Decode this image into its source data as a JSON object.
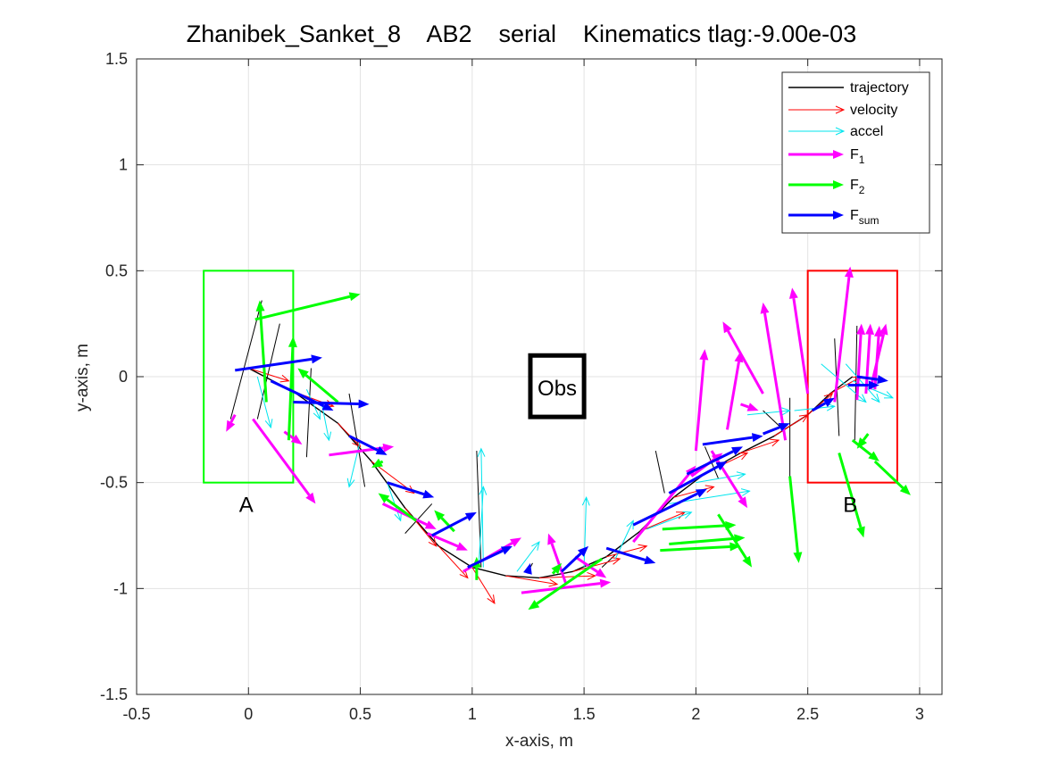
{
  "chart_data": {
    "type": "line",
    "title": "Zhanibek_Sanket_8    AB2    serial    Kinematics tlag:-9.00e-03",
    "xlabel": "x-axis, m",
    "ylabel": "y-axis, m",
    "xlim": [
      -0.5,
      3.1
    ],
    "ylim": [
      -1.5,
      1.5
    ],
    "xticks": [
      -0.5,
      0,
      0.5,
      1,
      1.5,
      2,
      2.5,
      3
    ],
    "yticks": [
      -1.5,
      -1,
      -0.5,
      0,
      0.5,
      1,
      1.5
    ],
    "xtick_labels": [
      "-0.5",
      "0",
      "0.5",
      "1",
      "1.5",
      "2",
      "2.5",
      "3"
    ],
    "ytick_labels": [
      "-1.5",
      "-1",
      "-0.5",
      "0",
      "0.5",
      "1",
      "1.5"
    ],
    "grid": true,
    "legend": {
      "placement": "top-right",
      "entries": [
        {
          "label": "trajectory",
          "color": "#000000",
          "style": "line"
        },
        {
          "label": "velocity",
          "color": "#ff0000",
          "style": "thin-arrow"
        },
        {
          "label": "accel",
          "color": "#00e5ee",
          "style": "thin-arrow"
        },
        {
          "label": "F",
          "sub": "1",
          "color": "#ff00ff",
          "style": "thick-arrow"
        },
        {
          "label": "F",
          "sub": "2",
          "color": "#00ff00",
          "style": "thick-arrow"
        },
        {
          "label": "F",
          "sub": "sum",
          "color": "#0000ff",
          "style": "thick-arrow"
        }
      ]
    },
    "regions": [
      {
        "label": "A",
        "x": [
          -0.2,
          0.2
        ],
        "y": [
          -0.5,
          0.5
        ],
        "color": "#00ff00",
        "label_pos": [
          -0.01,
          -0.6
        ]
      },
      {
        "label": "B",
        "x": [
          2.5,
          2.9
        ],
        "y": [
          -0.5,
          0.5
        ],
        "color": "#ff0000",
        "label_pos": [
          2.69,
          -0.6
        ]
      },
      {
        "label": "Obs",
        "x": [
          1.26,
          1.5
        ],
        "y": [
          -0.19,
          0.1
        ],
        "color": "#000000",
        "label_pos": [
          1.38,
          -0.05
        ]
      }
    ],
    "trajectory": {
      "x": [
        0.0,
        0.2,
        0.4,
        0.55,
        0.7,
        0.85,
        1.0,
        1.15,
        1.3,
        1.45,
        1.6,
        1.75,
        1.9,
        2.05,
        2.2,
        2.35,
        2.5,
        2.6,
        2.7
      ],
      "y": [
        0.04,
        -0.07,
        -0.22,
        -0.4,
        -0.62,
        -0.8,
        -0.9,
        -0.94,
        -0.95,
        -0.92,
        -0.85,
        -0.73,
        -0.57,
        -0.45,
        -0.36,
        -0.28,
        -0.18,
        -0.08,
        0.0
      ]
    },
    "connectors": [
      [
        [
          0.06,
          0.36
        ],
        [
          -0.08,
          -0.2
        ]
      ],
      [
        [
          0.14,
          0.25
        ],
        [
          0.04,
          -0.2
        ]
      ],
      [
        [
          0.28,
          0.04
        ],
        [
          0.26,
          -0.38
        ]
      ],
      [
        [
          0.45,
          -0.08
        ],
        [
          0.52,
          -0.52
        ]
      ],
      [
        [
          0.7,
          -0.74
        ],
        [
          0.82,
          -0.6
        ]
      ],
      [
        [
          1.04,
          -0.9
        ],
        [
          1.02,
          -0.35
        ]
      ],
      [
        [
          1.25,
          -0.92
        ],
        [
          1.27,
          -0.88
        ]
      ],
      [
        [
          1.58,
          -0.9
        ],
        [
          1.64,
          -0.84
        ]
      ],
      [
        [
          1.86,
          -0.55
        ],
        [
          1.82,
          -0.35
        ]
      ],
      [
        [
          2.04,
          -0.33
        ],
        [
          2.1,
          -0.48
        ]
      ],
      [
        [
          2.3,
          -0.16
        ],
        [
          2.38,
          -0.24
        ]
      ],
      [
        [
          2.42,
          -0.1
        ],
        [
          2.42,
          -0.48
        ]
      ],
      [
        [
          2.62,
          0.18
        ],
        [
          2.64,
          -0.28
        ]
      ],
      [
        [
          2.72,
          0.24
        ],
        [
          2.71,
          -0.3
        ]
      ]
    ],
    "series": [
      {
        "name": "velocity",
        "color": "#ff0000",
        "arrows": [
          [
            0.0,
            0.04,
            0.18,
            -0.02
          ],
          [
            0.2,
            -0.07,
            0.38,
            -0.14
          ],
          [
            0.4,
            -0.22,
            0.5,
            -0.33
          ],
          [
            0.55,
            -0.4,
            0.74,
            -0.55
          ],
          [
            0.7,
            -0.62,
            0.84,
            -0.8
          ],
          [
            0.85,
            -0.8,
            0.98,
            -0.95
          ],
          [
            1.0,
            -0.9,
            1.1,
            -1.07
          ],
          [
            1.15,
            -0.94,
            1.38,
            -0.98
          ],
          [
            1.3,
            -0.95,
            1.55,
            -0.94
          ],
          [
            1.45,
            -0.92,
            1.66,
            -0.86
          ],
          [
            1.6,
            -0.85,
            1.78,
            -0.8
          ],
          [
            1.75,
            -0.73,
            1.95,
            -0.64
          ],
          [
            1.9,
            -0.57,
            2.08,
            -0.52
          ],
          [
            2.05,
            -0.45,
            2.23,
            -0.36
          ],
          [
            2.2,
            -0.36,
            2.37,
            -0.3
          ],
          [
            2.35,
            -0.28,
            2.5,
            -0.18
          ],
          [
            2.5,
            -0.18,
            2.61,
            -0.08
          ],
          [
            2.6,
            -0.08,
            2.74,
            0.0
          ]
        ]
      },
      {
        "name": "accel",
        "color": "#00e5ee",
        "arrows": [
          [
            0.04,
            0.0,
            0.1,
            -0.24
          ],
          [
            0.26,
            -0.06,
            0.32,
            -0.2
          ],
          [
            0.33,
            -0.14,
            0.36,
            -0.3
          ],
          [
            0.5,
            -0.3,
            0.45,
            -0.52
          ],
          [
            0.62,
            -0.5,
            0.68,
            -0.68
          ],
          [
            1.03,
            -0.88,
            1.05,
            -0.52
          ],
          [
            1.05,
            -0.9,
            1.04,
            -0.34
          ],
          [
            1.2,
            -0.92,
            1.3,
            -0.78
          ],
          [
            1.5,
            -0.9,
            1.51,
            -0.57
          ],
          [
            1.64,
            -0.86,
            1.72,
            -0.68
          ],
          [
            1.78,
            -0.72,
            1.98,
            -0.64
          ],
          [
            1.88,
            -0.6,
            2.24,
            -0.54
          ],
          [
            2.0,
            -0.5,
            2.22,
            -0.46
          ],
          [
            2.23,
            -0.18,
            2.42,
            -0.16
          ],
          [
            2.44,
            -0.16,
            2.62,
            -0.14
          ],
          [
            2.56,
            0.06,
            2.76,
            -0.12
          ],
          [
            2.67,
            0.06,
            2.82,
            -0.12
          ],
          [
            2.7,
            -0.02,
            2.88,
            -0.1
          ]
        ]
      },
      {
        "name": "F1",
        "color": "#ff00ff",
        "arrows": [
          [
            0.02,
            -0.2,
            0.3,
            -0.6
          ],
          [
            0.16,
            -0.26,
            0.24,
            -0.32
          ],
          [
            -0.06,
            -0.18,
            -0.1,
            -0.26
          ],
          [
            0.36,
            -0.37,
            0.65,
            -0.33
          ],
          [
            0.6,
            -0.6,
            0.84,
            -0.72
          ],
          [
            0.8,
            -0.74,
            0.98,
            -0.82
          ],
          [
            0.96,
            -0.92,
            1.22,
            -0.76
          ],
          [
            1.22,
            -1.02,
            1.62,
            -0.97
          ],
          [
            1.42,
            -0.98,
            1.34,
            -0.74
          ],
          [
            1.46,
            -0.85,
            1.6,
            -0.95
          ],
          [
            1.72,
            -0.78,
            2.0,
            -0.42
          ],
          [
            1.98,
            -0.47,
            2.12,
            -0.36
          ],
          [
            2.0,
            -0.35,
            2.04,
            0.13
          ],
          [
            2.07,
            -0.35,
            2.23,
            -0.62
          ],
          [
            2.14,
            -0.25,
            2.2,
            0.12
          ],
          [
            2.2,
            -0.13,
            2.28,
            -0.16
          ],
          [
            2.3,
            -0.08,
            2.12,
            0.26
          ],
          [
            2.4,
            -0.3,
            2.3,
            0.35
          ],
          [
            2.5,
            -0.08,
            2.43,
            0.42
          ],
          [
            2.62,
            -0.12,
            2.69,
            0.52
          ],
          [
            2.72,
            -0.11,
            2.74,
            0.25
          ],
          [
            2.78,
            -0.06,
            2.85,
            0.25
          ],
          [
            2.8,
            -0.06,
            2.82,
            0.24
          ],
          [
            2.76,
            -0.08,
            2.78,
            0.25
          ]
        ]
      },
      {
        "name": "F2",
        "color": "#00ff00",
        "arrows": [
          [
            0.08,
            -0.12,
            0.05,
            0.36
          ],
          [
            0.03,
            0.27,
            0.5,
            0.39
          ],
          [
            0.18,
            -0.3,
            0.2,
            0.19
          ],
          [
            0.4,
            -0.12,
            0.22,
            0.04
          ],
          [
            0.6,
            -0.4,
            0.55,
            -0.43
          ],
          [
            0.75,
            -0.68,
            0.58,
            -0.55
          ],
          [
            0.92,
            -0.73,
            0.83,
            -0.63
          ],
          [
            1.02,
            -0.96,
            1.02,
            -0.85
          ],
          [
            1.58,
            -0.86,
            1.25,
            -1.1
          ],
          [
            1.36,
            -0.93,
            1.4,
            -0.88
          ],
          [
            1.85,
            -0.72,
            2.18,
            -0.7
          ],
          [
            1.88,
            -0.79,
            2.22,
            -0.76
          ],
          [
            1.84,
            -0.82,
            2.2,
            -0.8
          ],
          [
            2.1,
            -0.65,
            2.25,
            -0.9
          ],
          [
            2.42,
            -0.47,
            2.46,
            -0.88
          ],
          [
            2.64,
            -0.36,
            2.75,
            -0.76
          ],
          [
            2.7,
            -0.3,
            2.82,
            -0.4
          ],
          [
            2.8,
            -0.4,
            2.96,
            -0.56
          ],
          [
            2.77,
            -0.27,
            2.72,
            -0.34
          ]
        ]
      },
      {
        "name": "Fsum",
        "color": "#0000ff",
        "arrows": [
          [
            -0.06,
            0.03,
            0.33,
            0.09
          ],
          [
            0.1,
            -0.02,
            0.38,
            -0.16
          ],
          [
            0.2,
            -0.12,
            0.54,
            -0.13
          ],
          [
            0.45,
            -0.28,
            0.62,
            -0.37
          ],
          [
            0.62,
            -0.5,
            0.83,
            -0.57
          ],
          [
            0.82,
            -0.75,
            1.02,
            -0.64
          ],
          [
            0.98,
            -0.9,
            1.18,
            -0.8
          ],
          [
            1.25,
            -0.92,
            1.26,
            -0.88
          ],
          [
            1.4,
            -0.92,
            1.52,
            -0.8
          ],
          [
            1.6,
            -0.81,
            1.82,
            -0.88
          ],
          [
            1.72,
            -0.7,
            2.05,
            -0.53
          ],
          [
            1.88,
            -0.55,
            2.14,
            -0.4
          ],
          [
            1.96,
            -0.46,
            2.21,
            -0.33
          ],
          [
            2.03,
            -0.32,
            2.3,
            -0.28
          ],
          [
            2.3,
            -0.27,
            2.42,
            -0.22
          ],
          [
            2.52,
            -0.16,
            2.62,
            -0.1
          ],
          [
            2.72,
            0.0,
            2.86,
            -0.02
          ],
          [
            2.68,
            -0.04,
            2.82,
            -0.04
          ]
        ]
      }
    ]
  }
}
